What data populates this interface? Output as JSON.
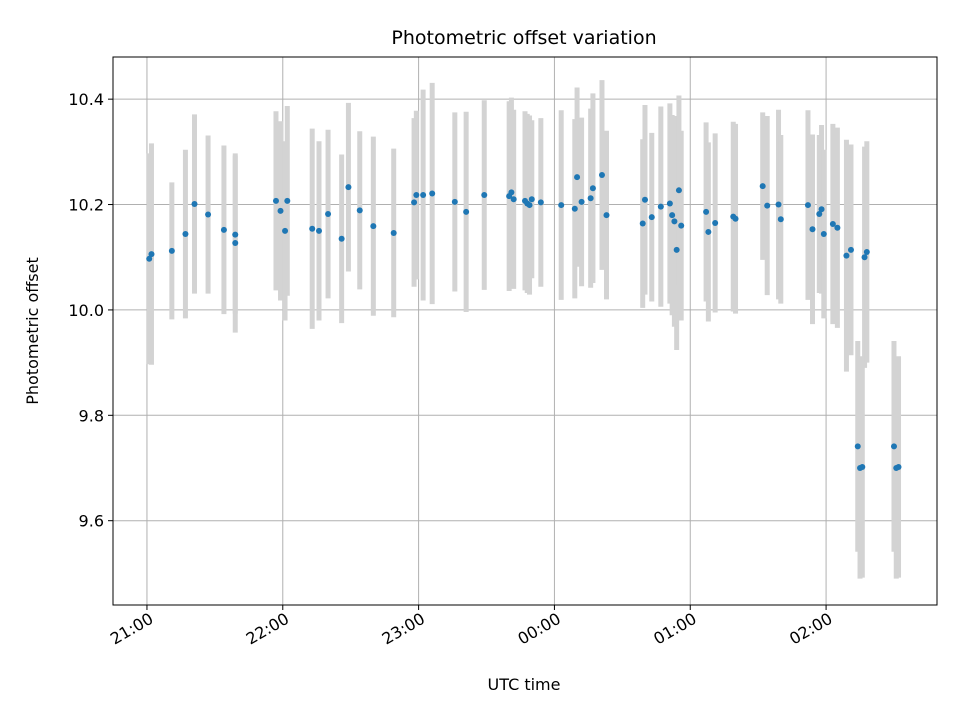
{
  "chart_data": {
    "type": "scatter",
    "title": "Photometric offset variation",
    "xlabel": "UTC time",
    "ylabel": "Photometric offset",
    "x_axis": {
      "kind": "time",
      "range": [
        "20:45",
        "26:49"
      ],
      "ticks": [
        "21:00",
        "22:00",
        "23:00",
        "00:00",
        "01:00",
        "02:00"
      ]
    },
    "y_axis": {
      "range": [
        9.44,
        10.48
      ],
      "ticks": [
        "9.6",
        "9.8",
        "10.0",
        "10.2",
        "10.4"
      ]
    },
    "grid": true,
    "colors": {
      "points": "#1f77b4",
      "errorbars": "#d3d3d3",
      "grid": "#b0b0b0"
    },
    "series": [
      {
        "x": [
          "21:01",
          "21:02",
          "21:11",
          "21:17",
          "21:21",
          "21:27",
          "21:34",
          "21:39",
          "21:39",
          "21:57",
          "21:59",
          "22:01",
          "22:02",
          "22:13",
          "22:16",
          "22:20",
          "22:26",
          "22:29",
          "22:34",
          "22:40",
          "22:49",
          "22:58",
          "22:59",
          "23:02",
          "23:06",
          "23:16",
          "23:21",
          "23:29",
          "23:40",
          "23:41",
          "23:42",
          "23:47",
          "23:48",
          "23:49",
          "23:50",
          "23:54",
          "24:03",
          "24:09",
          "24:10",
          "24:12",
          "24:16",
          "24:17",
          "24:21",
          "24:23",
          "24:39",
          "24:40",
          "24:43",
          "24:47",
          "24:51",
          "24:52",
          "24:53",
          "24:54",
          "24:55",
          "24:56",
          "25:07",
          "25:08",
          "25:11",
          "25:19",
          "25:20",
          "25:32",
          "25:34",
          "25:39",
          "25:40",
          "25:52",
          "25:54",
          "25:57",
          "25:58",
          "25:59",
          "26:03",
          "26:05",
          "26:09",
          "26:11",
          "26:14",
          "26:15",
          "26:16",
          "26:17",
          "26:18",
          "26:30",
          "26:31",
          "26:32"
        ],
        "y": [
          10.097,
          10.106,
          10.112,
          10.144,
          10.201,
          10.181,
          10.152,
          10.127,
          10.143,
          10.207,
          10.188,
          10.15,
          10.207,
          10.154,
          10.15,
          10.182,
          10.135,
          10.233,
          10.189,
          10.159,
          10.146,
          10.204,
          10.218,
          10.218,
          10.221,
          10.205,
          10.186,
          10.218,
          10.216,
          10.223,
          10.21,
          10.207,
          10.202,
          10.199,
          10.21,
          10.204,
          10.199,
          10.192,
          10.252,
          10.205,
          10.212,
          10.231,
          10.256,
          10.18,
          10.164,
          10.209,
          10.176,
          10.196,
          10.202,
          10.18,
          10.168,
          10.114,
          10.227,
          10.16,
          10.186,
          10.148,
          10.165,
          10.177,
          10.173,
          10.235,
          10.198,
          10.2,
          10.172,
          10.199,
          10.153,
          10.182,
          10.191,
          10.144,
          10.163,
          10.156,
          10.103,
          10.114,
          9.741,
          9.7,
          9.702,
          10.1,
          10.11,
          9.741,
          9.7,
          9.702
        ],
        "err": [
          0.2,
          0.21,
          0.13,
          0.16,
          0.17,
          0.15,
          0.16,
          0.17,
          0.15,
          0.17,
          0.17,
          0.17,
          0.18,
          0.19,
          0.17,
          0.16,
          0.16,
          0.16,
          0.15,
          0.17,
          0.16,
          0.16,
          0.16,
          0.2,
          0.21,
          0.17,
          0.19,
          0.18,
          0.18,
          0.18,
          0.17,
          0.17,
          0.17,
          0.17,
          0.15,
          0.16,
          0.18,
          0.17,
          0.17,
          0.16,
          0.17,
          0.18,
          0.18,
          0.16,
          0.16,
          0.18,
          0.16,
          0.19,
          0.19,
          0.19,
          0.2,
          0.19,
          0.18,
          0.18,
          0.17,
          0.17,
          0.17,
          0.18,
          0.18,
          0.14,
          0.17,
          0.18,
          0.16,
          0.18,
          0.18,
          0.15,
          0.16,
          0.16,
          0.19,
          0.19,
          0.22,
          0.2,
          0.2,
          0.21,
          0.21,
          0.21,
          0.21,
          0.2,
          0.21,
          0.21
        ]
      }
    ]
  }
}
